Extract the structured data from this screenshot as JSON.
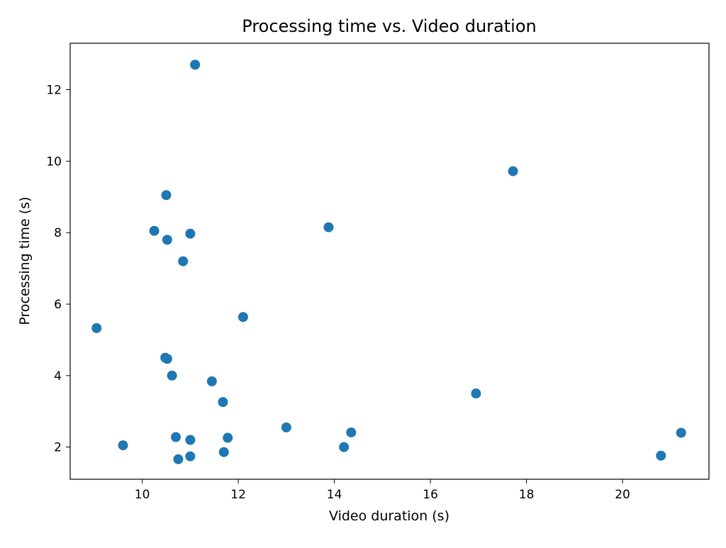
{
  "chart_data": {
    "type": "scatter",
    "title": "Processing time vs. Video duration",
    "xlabel": "Video duration (s)",
    "ylabel": "Processing time (s)",
    "xlim": [
      8.5,
      21.8
    ],
    "ylim": [
      1.1,
      13.3
    ],
    "xticks": [
      10,
      12,
      14,
      16,
      18,
      20
    ],
    "yticks": [
      2,
      4,
      6,
      8,
      10,
      12
    ],
    "grid": false,
    "marker_color": "#1f77b4",
    "points": [
      {
        "x": 9.05,
        "y": 5.33
      },
      {
        "x": 9.6,
        "y": 2.05
      },
      {
        "x": 10.25,
        "y": 8.05
      },
      {
        "x": 10.5,
        "y": 9.05
      },
      {
        "x": 10.52,
        "y": 7.8
      },
      {
        "x": 10.48,
        "y": 4.5
      },
      {
        "x": 10.52,
        "y": 4.47
      },
      {
        "x": 10.62,
        "y": 4.0
      },
      {
        "x": 10.7,
        "y": 2.28
      },
      {
        "x": 10.75,
        "y": 1.66
      },
      {
        "x": 10.85,
        "y": 7.2
      },
      {
        "x": 11.0,
        "y": 7.97
      },
      {
        "x": 11.0,
        "y": 2.2
      },
      {
        "x": 11.0,
        "y": 1.74
      },
      {
        "x": 11.1,
        "y": 12.7
      },
      {
        "x": 11.45,
        "y": 3.84
      },
      {
        "x": 11.68,
        "y": 3.26
      },
      {
        "x": 11.7,
        "y": 1.86
      },
      {
        "x": 11.78,
        "y": 2.26
      },
      {
        "x": 12.1,
        "y": 5.64
      },
      {
        "x": 13.0,
        "y": 2.55
      },
      {
        "x": 13.88,
        "y": 8.15
      },
      {
        "x": 14.2,
        "y": 2.0
      },
      {
        "x": 14.35,
        "y": 2.41
      },
      {
        "x": 16.95,
        "y": 3.5
      },
      {
        "x": 17.72,
        "y": 9.72
      },
      {
        "x": 20.8,
        "y": 1.76
      },
      {
        "x": 21.22,
        "y": 2.4
      }
    ]
  }
}
